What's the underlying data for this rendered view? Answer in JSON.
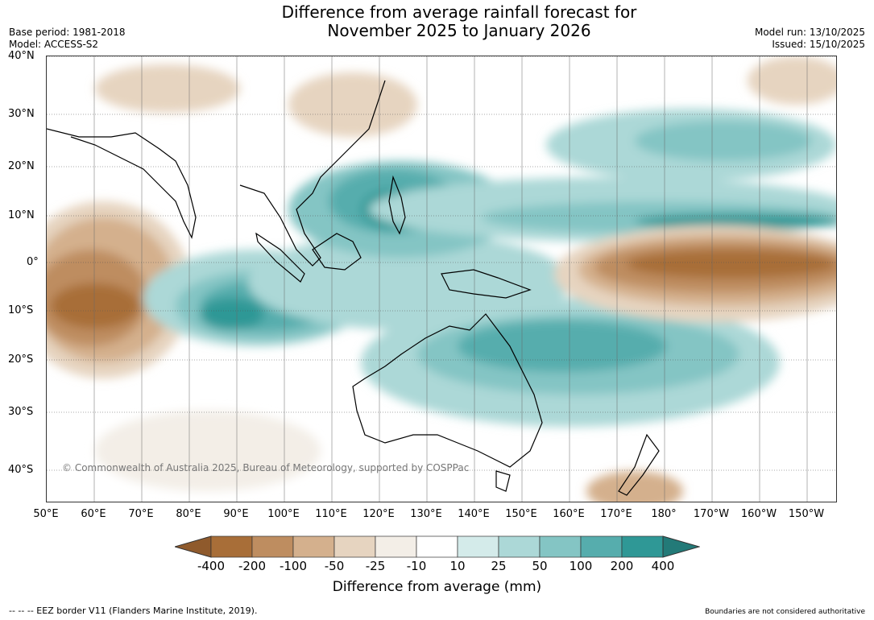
{
  "title_line1": "Difference from average rainfall forecast for",
  "title_line2": "November 2025 to January 2026",
  "base_period": "Base period: 1981-2018",
  "model": "Model: ACCESS-S2",
  "model_run": "Model run: 13/10/2025",
  "issued": "Issued: 15/10/2025",
  "lat_labels": [
    "40°N",
    "30°N",
    "20°N",
    "10°N",
    "0°",
    "10°S",
    "20°S",
    "30°S",
    "40°S"
  ],
  "lon_labels": [
    "50°E",
    "60°E",
    "70°E",
    "80°E",
    "90°E",
    "100°E",
    "110°E",
    "120°E",
    "130°E",
    "140°E",
    "150°E",
    "160°E",
    "170°E",
    "180°",
    "170°W",
    "160°W",
    "150°W"
  ],
  "copyright": "© Commonwealth of Australia 2025, Bureau of Meteorology, supported by COSPPac",
  "colorbar": {
    "ticks": [
      "-400",
      "-200",
      "-100",
      "-50",
      "-25",
      "-10",
      "10",
      "25",
      "50",
      "100",
      "200",
      "400"
    ],
    "colors": [
      "#a86e38",
      "#be8d60",
      "#d4b08d",
      "#e6d4c0",
      "#f3eee7",
      "#ffffff",
      "#d4ebea",
      "#acd8d7",
      "#84c5c4",
      "#56adad",
      "#2f9896"
    ],
    "under_color": "#8f5a2c",
    "over_color": "#237a78",
    "label": "Difference from average (mm)"
  },
  "footer_left": "--  --  -- EEZ border V11 (Flanders Marine Institute, 2019).",
  "footer_right": "Boundaries are not considered authoritative"
}
